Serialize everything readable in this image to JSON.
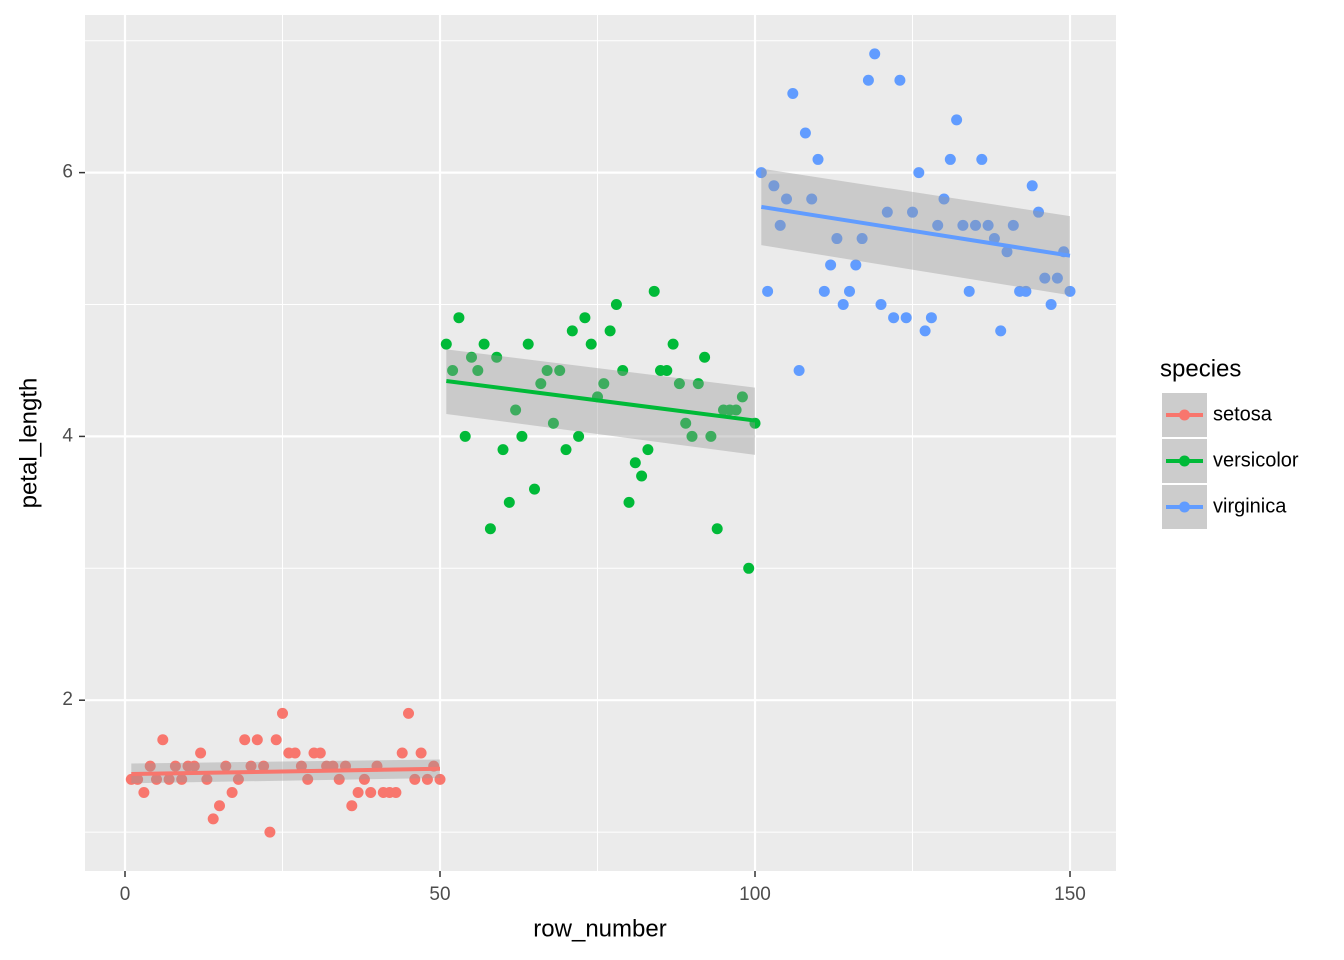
{
  "chart_data": {
    "type": "scatter",
    "x_label": "row_number",
    "y_label": "petal_length",
    "legend_title": "species",
    "legend_position": "right",
    "grid": true,
    "xlim": [
      -6.35,
      157.3
    ],
    "ylim": [
      0.705,
      7.195
    ],
    "xticks": [
      0,
      50,
      100,
      150
    ],
    "yticks": [
      2,
      4,
      6
    ],
    "xminor": [
      25,
      75,
      125
    ],
    "yminor": [
      1,
      3,
      5,
      7
    ],
    "series": [
      {
        "name": "setosa",
        "color": "#F8766D",
        "x": [
          1,
          2,
          3,
          4,
          5,
          6,
          7,
          8,
          9,
          10,
          11,
          12,
          13,
          14,
          15,
          16,
          17,
          18,
          19,
          20,
          21,
          22,
          23,
          24,
          25,
          26,
          27,
          28,
          29,
          30,
          31,
          32,
          33,
          34,
          35,
          36,
          37,
          38,
          39,
          40,
          41,
          42,
          43,
          44,
          45,
          46,
          47,
          48,
          49,
          50
        ],
        "values": [
          1.4,
          1.4,
          1.3,
          1.5,
          1.4,
          1.7,
          1.4,
          1.5,
          1.4,
          1.5,
          1.5,
          1.6,
          1.4,
          1.1,
          1.2,
          1.5,
          1.3,
          1.4,
          1.7,
          1.5,
          1.7,
          1.5,
          1.0,
          1.7,
          1.9,
          1.6,
          1.6,
          1.5,
          1.4,
          1.6,
          1.6,
          1.5,
          1.5,
          1.4,
          1.5,
          1.2,
          1.3,
          1.4,
          1.3,
          1.5,
          1.3,
          1.3,
          1.3,
          1.6,
          1.9,
          1.4,
          1.6,
          1.4,
          1.5,
          1.4
        ],
        "fit": {
          "x": [
            1,
            50
          ],
          "y": [
            1.44,
            1.48
          ],
          "lower": [
            1.37,
            1.41
          ],
          "upper": [
            1.52,
            1.55
          ]
        }
      },
      {
        "name": "versicolor",
        "color": "#00BA38",
        "x": [
          51,
          52,
          53,
          54,
          55,
          56,
          57,
          58,
          59,
          60,
          61,
          62,
          63,
          64,
          65,
          66,
          67,
          68,
          69,
          70,
          71,
          72,
          73,
          74,
          75,
          76,
          77,
          78,
          79,
          80,
          81,
          82,
          83,
          84,
          85,
          86,
          87,
          88,
          89,
          90,
          91,
          92,
          93,
          94,
          95,
          96,
          97,
          98,
          99,
          100
        ],
        "values": [
          4.7,
          4.5,
          4.9,
          4.0,
          4.6,
          4.5,
          4.7,
          3.3,
          4.6,
          3.9,
          3.5,
          4.2,
          4.0,
          4.7,
          3.6,
          4.4,
          4.5,
          4.1,
          4.5,
          3.9,
          4.8,
          4.0,
          4.9,
          4.7,
          4.3,
          4.4,
          4.8,
          5.0,
          4.5,
          3.5,
          3.8,
          3.7,
          3.9,
          5.1,
          4.5,
          4.5,
          4.7,
          4.4,
          4.1,
          4.0,
          4.4,
          4.6,
          4.0,
          3.3,
          4.2,
          4.2,
          4.2,
          4.3,
          3.0,
          4.1
        ],
        "fit": {
          "x": [
            51,
            100
          ],
          "y": [
            4.42,
            4.12
          ],
          "lower": [
            4.17,
            3.86
          ],
          "upper": [
            4.66,
            4.37
          ]
        }
      },
      {
        "name": "virginica",
        "color": "#619CFF",
        "x": [
          101,
          102,
          103,
          104,
          105,
          106,
          107,
          108,
          109,
          110,
          111,
          112,
          113,
          114,
          115,
          116,
          117,
          118,
          119,
          120,
          121,
          122,
          123,
          124,
          125,
          126,
          127,
          128,
          129,
          130,
          131,
          132,
          133,
          134,
          135,
          136,
          137,
          138,
          139,
          140,
          141,
          142,
          143,
          144,
          145,
          146,
          147,
          148,
          149,
          150
        ],
        "values": [
          6.0,
          5.1,
          5.9,
          5.6,
          5.8,
          6.6,
          4.5,
          6.3,
          5.8,
          6.1,
          5.1,
          5.3,
          5.5,
          5.0,
          5.1,
          5.3,
          5.5,
          6.7,
          6.9,
          5.0,
          5.7,
          4.9,
          6.7,
          4.9,
          5.7,
          6.0,
          4.8,
          4.9,
          5.6,
          5.8,
          6.1,
          6.4,
          5.6,
          5.1,
          5.6,
          6.1,
          5.6,
          5.5,
          4.8,
          5.4,
          5.6,
          5.1,
          5.1,
          5.9,
          5.7,
          5.2,
          5.0,
          5.2,
          5.4,
          5.1
        ],
        "fit": {
          "x": [
            101,
            150
          ],
          "y": [
            5.74,
            5.37
          ],
          "lower": [
            5.45,
            5.07
          ],
          "upper": [
            6.03,
            5.67
          ]
        }
      }
    ]
  }
}
